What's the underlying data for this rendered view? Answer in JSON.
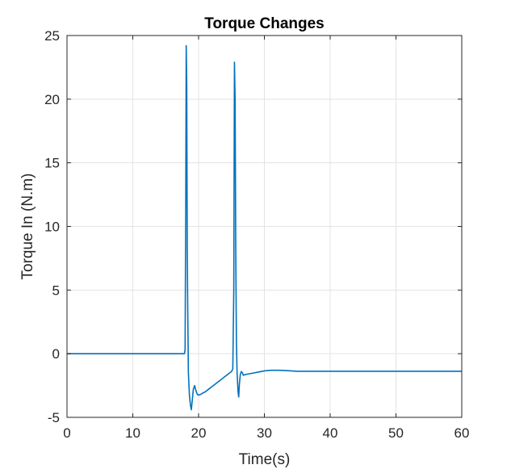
{
  "chart_data": {
    "type": "line",
    "title": "Torque Changes",
    "xlabel": "Time(s)",
    "ylabel": "Torque In (N.m)",
    "xlim": [
      0,
      60
    ],
    "ylim": [
      -5,
      25
    ],
    "xticks": [
      0,
      10,
      20,
      30,
      40,
      50,
      60
    ],
    "yticks": [
      -5,
      0,
      5,
      10,
      15,
      20,
      25
    ],
    "xtick_labels": [
      "0",
      "10",
      "20",
      "30",
      "40",
      "50",
      "60"
    ],
    "ytick_labels": [
      "-5",
      "0",
      "5",
      "10",
      "15",
      "20",
      "25"
    ],
    "grid": true,
    "legend": "none",
    "colors": {
      "line": "#0072BD",
      "grid": "#e3e3e3",
      "axis": "#262626"
    },
    "series": [
      {
        "x": [
          0,
          17.6,
          17.85,
          17.95,
          18.05,
          18.12,
          18.2,
          18.28,
          18.35,
          18.45,
          18.6,
          18.75,
          18.9,
          19.05,
          19.2,
          19.4,
          19.6,
          19.8,
          20.0,
          20.3,
          20.6,
          21.0,
          21.5,
          22.0,
          22.5,
          23.0,
          23.5,
          24.0,
          24.5,
          25.0,
          25.2,
          25.35,
          25.45,
          25.55,
          25.65,
          25.75,
          25.85,
          26.0,
          26.1,
          26.2,
          26.35,
          26.5,
          26.65,
          26.8,
          27.0,
          27.5,
          28.0,
          29.0,
          30.0,
          31.0,
          32.0,
          33.0,
          34.0,
          35.0,
          40.0,
          50.0,
          60.0
        ],
        "y": [
          0,
          0,
          0,
          0.3,
          12,
          24.2,
          21,
          8,
          3.5,
          -1.5,
          -3.2,
          -4.0,
          -4.4,
          -3.6,
          -2.8,
          -2.5,
          -2.9,
          -3.2,
          -3.25,
          -3.2,
          -3.1,
          -3.0,
          -2.8,
          -2.6,
          -2.4,
          -2.2,
          -2.0,
          -1.8,
          -1.6,
          -1.4,
          -1.2,
          5,
          22.9,
          20,
          8,
          1,
          -1.5,
          -3.0,
          -3.4,
          -2.4,
          -1.6,
          -1.4,
          -1.5,
          -1.7,
          -1.65,
          -1.6,
          -1.55,
          -1.45,
          -1.35,
          -1.3,
          -1.3,
          -1.32,
          -1.35,
          -1.38,
          -1.38,
          -1.38,
          -1.38
        ]
      }
    ]
  }
}
